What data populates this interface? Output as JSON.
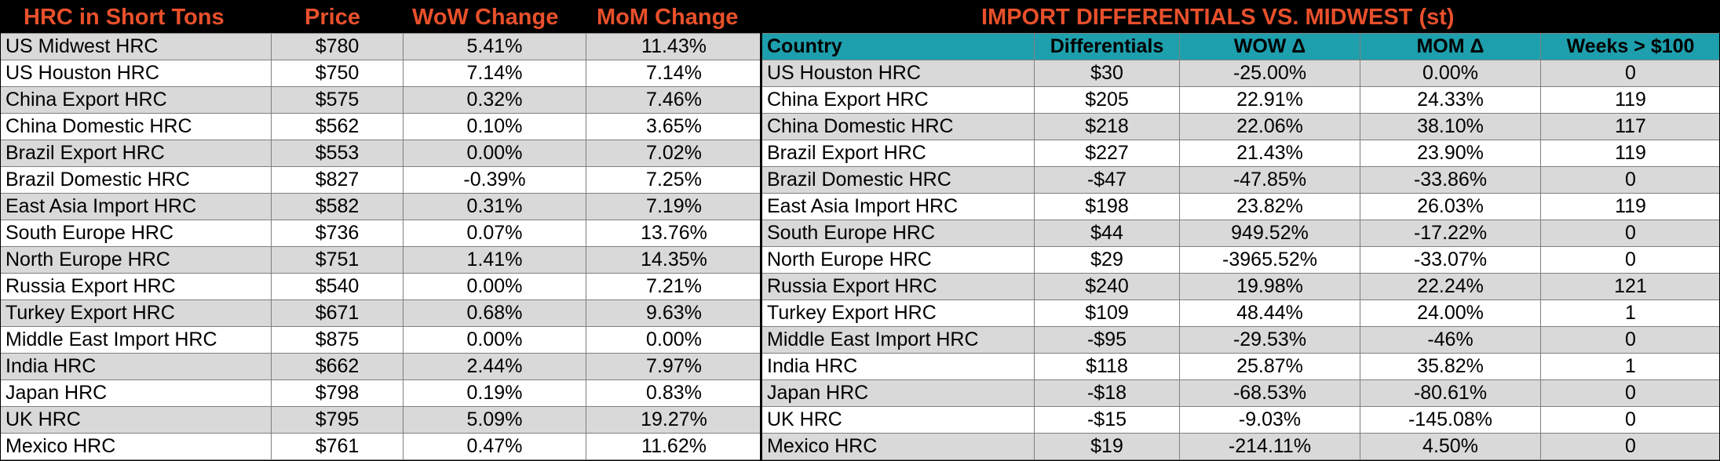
{
  "left_header": {
    "title": "HRC in Short Tons",
    "price": "Price",
    "wow": "WoW Change",
    "mom": "MoM Change"
  },
  "right_title": "IMPORT DIFFERENTIALS VS. MIDWEST (st)",
  "right_columns": {
    "country": "Country",
    "differentials": "Differentials",
    "wow": "WOW Δ",
    "mom": "MOM Δ",
    "weeks": "Weeks > $100"
  },
  "left_rows": [
    {
      "name": "US Midwest HRC",
      "price": "$780",
      "wow": "5.41%",
      "mom": "11.43%"
    },
    {
      "name": "US Houston HRC",
      "price": "$750",
      "wow": "7.14%",
      "mom": "7.14%"
    },
    {
      "name": "China Export HRC",
      "price": "$575",
      "wow": "0.32%",
      "mom": "7.46%"
    },
    {
      "name": "China Domestic HRC",
      "price": "$562",
      "wow": "0.10%",
      "mom": "3.65%"
    },
    {
      "name": "Brazil Export HRC",
      "price": "$553",
      "wow": "0.00%",
      "mom": "7.02%"
    },
    {
      "name": "Brazil Domestic HRC",
      "price": "$827",
      "wow": "-0.39%",
      "mom": "7.25%"
    },
    {
      "name": "East Asia Import HRC",
      "price": "$582",
      "wow": "0.31%",
      "mom": "7.19%"
    },
    {
      "name": "South Europe HRC",
      "price": "$736",
      "wow": "0.07%",
      "mom": "13.76%"
    },
    {
      "name": "North Europe HRC",
      "price": "$751",
      "wow": "1.41%",
      "mom": "14.35%"
    },
    {
      "name": "Russia Export HRC",
      "price": "$540",
      "wow": "0.00%",
      "mom": "7.21%"
    },
    {
      "name": "Turkey Export HRC",
      "price": "$671",
      "wow": "0.68%",
      "mom": "9.63%"
    },
    {
      "name": "Middle East Import HRC",
      "price": "$875",
      "wow": "0.00%",
      "mom": "0.00%"
    },
    {
      "name": "India HRC",
      "price": "$662",
      "wow": "2.44%",
      "mom": "7.97%"
    },
    {
      "name": "Japan HRC",
      "price": "$798",
      "wow": "0.19%",
      "mom": "0.83%"
    },
    {
      "name": "UK HRC",
      "price": "$795",
      "wow": "5.09%",
      "mom": "19.27%"
    },
    {
      "name": "Mexico HRC",
      "price": "$761",
      "wow": "0.47%",
      "mom": "11.62%"
    }
  ],
  "right_rows": [
    {
      "country": "US Houston HRC",
      "diff": "$30",
      "wow": "-25.00%",
      "mom": "0.00%",
      "weeks": "0"
    },
    {
      "country": "China Export HRC",
      "diff": "$205",
      "wow": "22.91%",
      "mom": "24.33%",
      "weeks": "119"
    },
    {
      "country": "China Domestic HRC",
      "diff": "$218",
      "wow": "22.06%",
      "mom": "38.10%",
      "weeks": "117"
    },
    {
      "country": "Brazil Export HRC",
      "diff": "$227",
      "wow": "21.43%",
      "mom": "23.90%",
      "weeks": "119"
    },
    {
      "country": "Brazil Domestic HRC",
      "diff": "-$47",
      "wow": "-47.85%",
      "mom": "-33.86%",
      "weeks": "0"
    },
    {
      "country": "East Asia Import HRC",
      "diff": "$198",
      "wow": "23.82%",
      "mom": "26.03%",
      "weeks": "119"
    },
    {
      "country": "South Europe HRC",
      "diff": "$44",
      "wow": "949.52%",
      "mom": "-17.22%",
      "weeks": "0"
    },
    {
      "country": "North Europe HRC",
      "diff": "$29",
      "wow": "-3965.52%",
      "mom": "-33.07%",
      "weeks": "0"
    },
    {
      "country": "Russia Export HRC",
      "diff": "$240",
      "wow": "19.98%",
      "mom": "22.24%",
      "weeks": "121"
    },
    {
      "country": "Turkey Export HRC",
      "diff": "$109",
      "wow": "48.44%",
      "mom": "24.00%",
      "weeks": "1"
    },
    {
      "country": "Middle East Import HRC",
      "diff": "-$95",
      "wow": "-29.53%",
      "mom": "-46%",
      "weeks": "0"
    },
    {
      "country": "India HRC",
      "diff": "$118",
      "wow": "25.87%",
      "mom": "35.82%",
      "weeks": "1"
    },
    {
      "country": "Japan HRC",
      "diff": "-$18",
      "wow": "-68.53%",
      "mom": "-80.61%",
      "weeks": "0"
    },
    {
      "country": "UK HRC",
      "diff": "-$15",
      "wow": "-9.03%",
      "mom": "-145.08%",
      "weeks": "0"
    },
    {
      "country": "Mexico HRC",
      "diff": "$19",
      "wow": "-214.11%",
      "mom": "4.50%",
      "weeks": "0"
    }
  ],
  "colors": {
    "header_bg": "#000000",
    "header_text": "#e8502b",
    "column_header_bg": "#1e9fad",
    "shaded_row": "#d9d9d9"
  }
}
